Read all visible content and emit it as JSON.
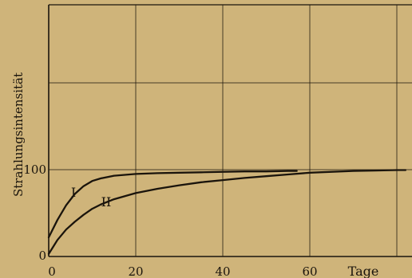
{
  "chart_data": {
    "type": "line",
    "xlabel": "Tage",
    "ylabel": "Strahlungsintensität",
    "xlim": [
      0,
      82
    ],
    "ylim": [
      0,
      288
    ],
    "x_ticks": [
      0,
      20,
      40,
      60
    ],
    "x_tick_labels": [
      "0",
      "20",
      "40",
      "60"
    ],
    "y_ticks": [
      0,
      100
    ],
    "y_tick_labels": [
      "0",
      "100"
    ],
    "grid": true,
    "legend": "none",
    "series": [
      {
        "name": "I",
        "x": [
          0,
          2,
          4,
          6,
          8,
          10,
          12,
          15,
          20,
          25,
          30,
          35,
          40,
          45,
          50,
          55,
          57
        ],
        "y": [
          22,
          42,
          59,
          72,
          81,
          87,
          90,
          93,
          95,
          96,
          96.5,
          97,
          97.5,
          98,
          98,
          98.5,
          98.5
        ]
      },
      {
        "name": "II",
        "x": [
          0,
          1,
          2,
          4,
          6,
          8,
          10,
          12,
          15,
          20,
          25,
          30,
          35,
          40,
          45,
          50,
          55,
          60,
          65,
          70,
          75,
          80,
          82
        ],
        "y": [
          3,
          11,
          19,
          31,
          40,
          48,
          55,
          60,
          66,
          73,
          78,
          82,
          85.5,
          88,
          90.5,
          92.5,
          94.5,
          96.5,
          97.5,
          98.5,
          99,
          99.5,
          99.5
        ]
      }
    ],
    "annotations": [
      "I",
      "II"
    ],
    "colors": {
      "background": "#cfb47a",
      "ink": "#1a140c"
    }
  }
}
